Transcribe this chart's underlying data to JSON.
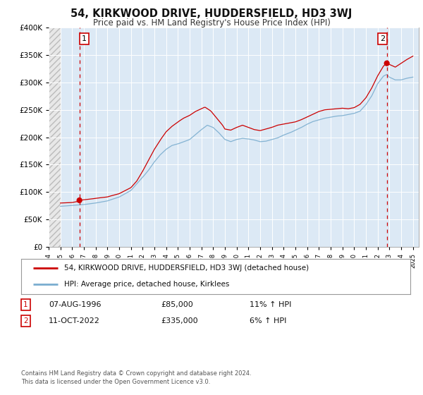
{
  "title": "54, KIRKWOOD DRIVE, HUDDERSFIELD, HD3 3WJ",
  "subtitle": "Price paid vs. HM Land Registry's House Price Index (HPI)",
  "legend_line1": "54, KIRKWOOD DRIVE, HUDDERSFIELD, HD3 3WJ (detached house)",
  "legend_line2": "HPI: Average price, detached house, Kirklees",
  "sale1_label": "1",
  "sale1_date": "07-AUG-1996",
  "sale1_price": "£85,000",
  "sale1_hpi": "11% ↑ HPI",
  "sale2_label": "2",
  "sale2_date": "11-OCT-2022",
  "sale2_price": "£335,000",
  "sale2_hpi": "6% ↑ HPI",
  "footnote1": "Contains HM Land Registry data © Crown copyright and database right 2024.",
  "footnote2": "This data is licensed under the Open Government Licence v3.0.",
  "price_color": "#cc0000",
  "hpi_color": "#7aadcf",
  "marker_color": "#cc0000",
  "vline_color": "#cc0000",
  "background_color": "#ffffff",
  "plot_bg_color": "#dce9f5",
  "grid_color": "#ffffff",
  "hatch_color": "#cccccc",
  "sale1_year": 1996.62,
  "sale2_year": 2022.78,
  "sale1_value": 85000,
  "sale2_value": 335000,
  "ylim": [
    0,
    400000
  ],
  "xlim_start": 1994.0,
  "xlim_end": 2025.5,
  "data_start_year": 1995.0
}
